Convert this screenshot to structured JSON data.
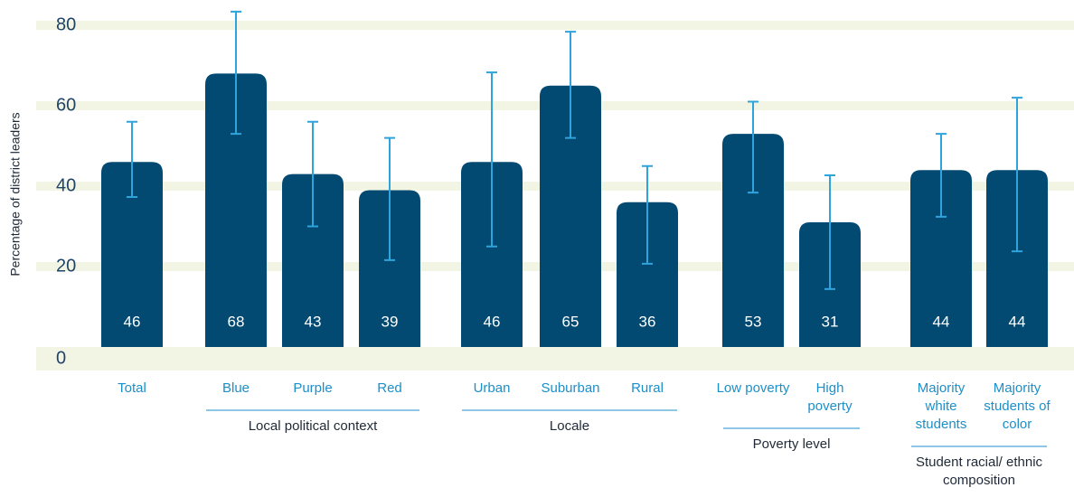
{
  "chart_data": {
    "type": "bar",
    "y_label": "Percentage of district leaders",
    "categories": [
      "Total",
      "Blue",
      "Purple",
      "Red",
      "Urban",
      "Suburban",
      "Rural",
      "Low poverty",
      "High poverty",
      "Majority white students",
      "Majority students of color"
    ],
    "series": [
      {
        "color": "#034a73",
        "error_color": "#2ea3dc",
        "values": [
          46,
          68,
          43,
          39,
          46,
          65,
          36,
          53,
          31,
          44,
          44
        ],
        "lower": [
          37.3,
          53,
          30,
          21.6,
          25,
          52,
          20.7,
          38.4,
          14.4,
          32.4,
          23.8
        ],
        "upper": [
          56,
          83.4,
          56,
          52,
          68.3,
          78.4,
          45,
          61,
          42.7,
          53,
          62
        ]
      }
    ],
    "groups": [
      {
        "label": "Local political context",
        "members": [
          "Blue",
          "Purple",
          "Red"
        ]
      },
      {
        "label": "Locale",
        "members": [
          "Urban",
          "Suburban",
          "Rural"
        ]
      },
      {
        "label": "Poverty level",
        "members": [
          "Low poverty",
          "High poverty"
        ]
      },
      {
        "label": "Student racial/ ethnic composition",
        "members": [
          "Majority white students",
          "Majority students of color"
        ]
      }
    ],
    "ylim": [
      0,
      80
    ],
    "yticks": [
      0,
      20,
      40,
      60,
      80
    ],
    "grid": true
  }
}
